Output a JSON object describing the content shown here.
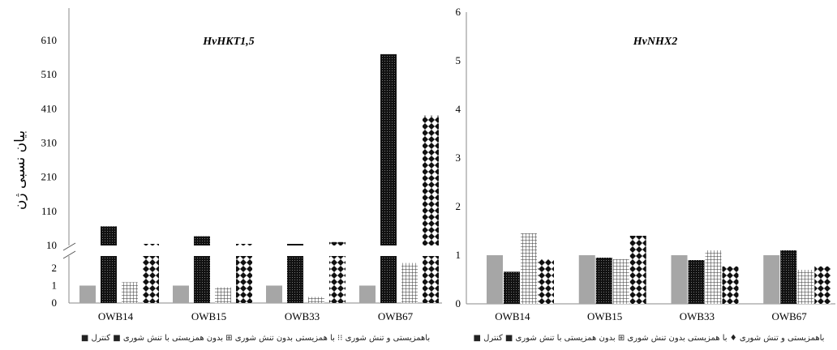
{
  "chart_data": [
    {
      "type": "bar",
      "title": "HvHKT1,5",
      "ylabel": "بیان نسبی ژن",
      "xlabel": "",
      "categories": [
        "OWB14",
        "OWB15",
        "OWB33",
        "OWB67"
      ],
      "broken_axis": true,
      "lower_ticks": [
        "0",
        "1",
        "2"
      ],
      "upper_ticks": [
        "10",
        "110",
        "210",
        "310",
        "410",
        "510",
        "610"
      ],
      "series": [
        {
          "name": "کنترل",
          "values": [
            1.0,
            1.0,
            1.0,
            1.0
          ],
          "pattern": "solid-gray"
        },
        {
          "name": "تنش شوری",
          "values": [
            66,
            37,
            2.8,
            570
          ],
          "pattern": "dense-black"
        },
        {
          "name": "بدون همزیستی",
          "values": [
            1.2,
            0.9,
            0.35,
            2.3
          ],
          "pattern": "grid"
        },
        {
          "name": "باهمزیستی و تنش شوری",
          "values": [
            11,
            8,
            20,
            390
          ],
          "pattern": "diamond"
        }
      ]
    },
    {
      "type": "bar",
      "title": "HvNHX2",
      "ylabel": "",
      "xlabel": "",
      "categories": [
        "OWB14",
        "OWB15",
        "OWB33",
        "OWB67"
      ],
      "ylim": [
        0,
        6
      ],
      "yticks": [
        "0",
        "1",
        "2",
        "3",
        "4",
        "5",
        "6"
      ],
      "series": [
        {
          "name": "کنترل",
          "values": [
            1.0,
            1.0,
            1.0,
            1.0
          ],
          "pattern": "solid-gray"
        },
        {
          "name": "تنش شوری",
          "values": [
            0.66,
            0.95,
            0.9,
            1.1
          ],
          "pattern": "dense-black"
        },
        {
          "name": "بدون همزیستی",
          "values": [
            1.45,
            0.92,
            1.1,
            0.7
          ],
          "pattern": "grid"
        },
        {
          "name": "باهمزیستی و تنش شوری",
          "values": [
            0.92,
            1.4,
            0.77,
            0.77
          ],
          "pattern": "diamond"
        }
      ]
    }
  ],
  "legend_left": "باهمزیستی و تنش شوری ⁝⁝ با همزیستی بدون تنش شوری ⊞ بدون همزیستی با تنش شوری ■ کنترل ■",
  "legend_right": "باهمزیستی و تنش شوری ♦ با همزیستی بدون تنش شوری ⊞ بدون همزیستی با تنش شوری ■ کنترل ■"
}
